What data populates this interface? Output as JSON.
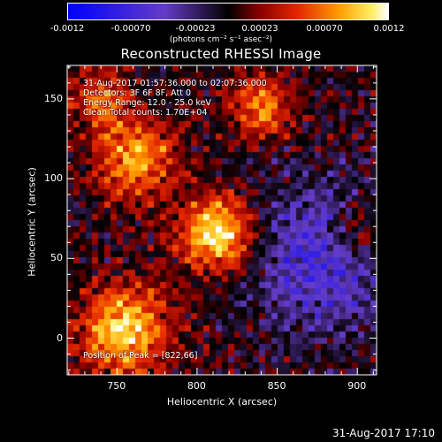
{
  "chart_data": {
    "type": "heatmap",
    "title": "Reconstructed RHESSI Image",
    "xlabel": "Heliocentric X (arcsec)",
    "ylabel": "Heliocentric Y (arcsec)",
    "xlim": [
      719,
      912
    ],
    "ylim": [
      -23,
      171
    ],
    "xticks": [
      750,
      800,
      850,
      900
    ],
    "yticks": [
      0,
      50,
      100,
      150
    ],
    "colorbar": {
      "ticks": [
        "-0.0012",
        "-0.00070",
        "-0.00023",
        "0.00023",
        "0.00070",
        "0.0012"
      ],
      "range": [
        -0.0012,
        0.0012
      ],
      "unit": "(photons cm⁻² s⁻¹ asec⁻²)"
    },
    "annotations": [
      "31-Aug-2017 01:57:36.000 to 02:07:36.000",
      "Detectors: 3F 6F 8F, Att 0",
      "Energy Range: 12.0 - 25.0 keV",
      "Clean     Total counts: 1.70E+04"
    ],
    "peak_text": "Position of Peak = [822,66]",
    "peak_position": [
      822,
      66
    ],
    "sources": [
      {
        "x": 812,
        "y": 65,
        "sigma": 16,
        "amp": 1.0
      },
      {
        "x": 755,
        "y": 5,
        "sigma": 20,
        "amp": 0.85
      },
      {
        "x": 762,
        "y": 112,
        "sigma": 18,
        "amp": 0.7
      },
      {
        "x": 840,
        "y": 145,
        "sigma": 14,
        "amp": 0.6
      },
      {
        "x": 900,
        "y": 65,
        "sigma": 14,
        "amp": 0.45
      },
      {
        "x": 740,
        "y": 150,
        "sigma": 14,
        "amp": 0.5
      }
    ],
    "negative_region": {
      "x": 880,
      "y": 50,
      "sigma": 30,
      "amp": -0.6
    }
  },
  "footer": {
    "timestamp": "31-Aug-2017 17:10"
  }
}
